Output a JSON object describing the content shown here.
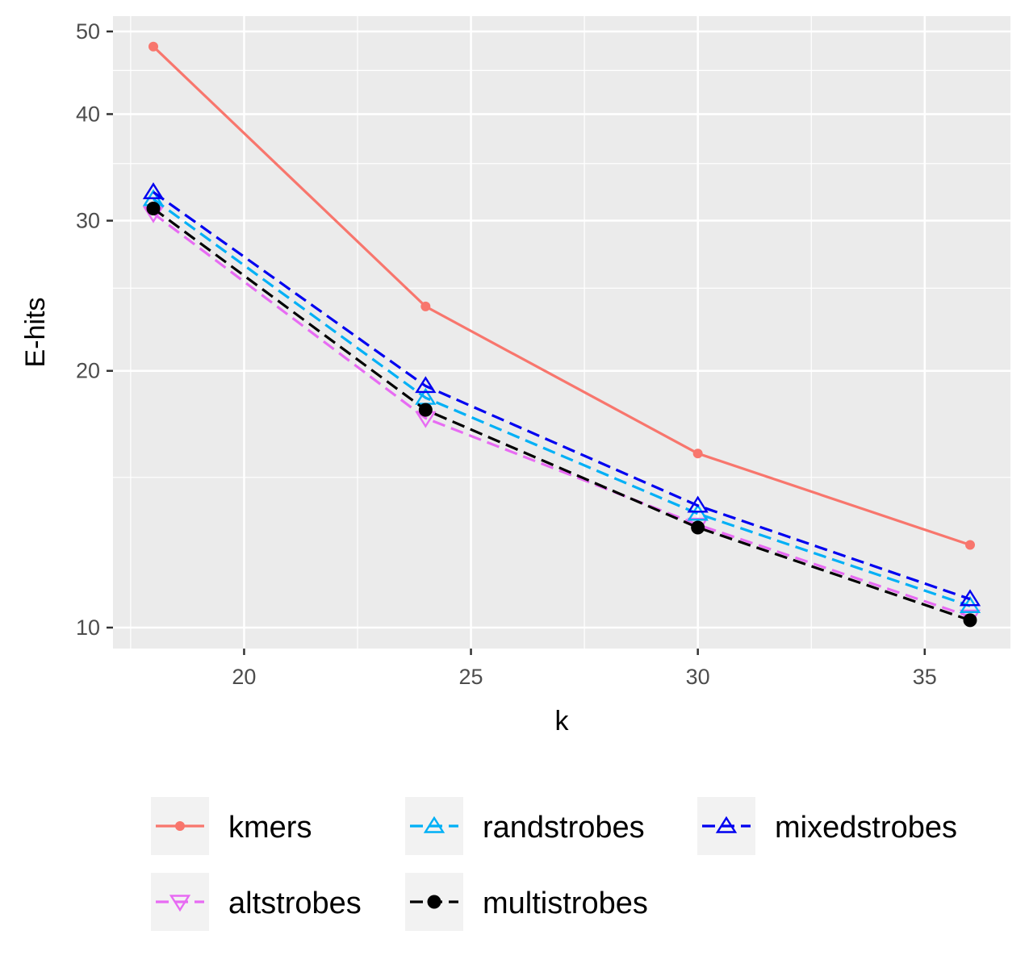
{
  "chart_data": {
    "type": "line",
    "title": "",
    "xlabel": "k",
    "ylabel": "E-hits",
    "x": [
      18,
      24,
      30,
      36
    ],
    "xlim": [
      17,
      37
    ],
    "ylim": [
      9.5,
      51
    ],
    "y_scale": "log",
    "x_ticks": [
      20,
      25,
      30,
      35
    ],
    "x_tick_labels": [
      "20",
      "25",
      "30",
      "35"
    ],
    "y_ticks": [
      10,
      20,
      30,
      40,
      50
    ],
    "y_tick_labels": [
      "10",
      "20",
      "30",
      "40",
      "50"
    ],
    "grid": true,
    "legend_position": "bottom",
    "series": [
      {
        "name": "kmers",
        "values": [
          48.0,
          23.8,
          16.0,
          12.5
        ],
        "color": "#F8766D",
        "line": "solid",
        "marker": "filled-circle-small"
      },
      {
        "name": "altstrobes",
        "values": [
          30.6,
          17.6,
          13.2,
          10.3
        ],
        "color": "#E76BF3",
        "line": "dashed",
        "marker": "triangle-down-open"
      },
      {
        "name": "randstrobes",
        "values": [
          31.8,
          18.6,
          13.6,
          10.6
        ],
        "color": "#00B0F6",
        "line": "dashed",
        "marker": "triangle-up-open"
      },
      {
        "name": "mixedstrobes",
        "values": [
          32.4,
          19.2,
          13.9,
          10.8
        ],
        "color": "#0000F0",
        "line": "dashed",
        "marker": "triangle-up-open"
      },
      {
        "name": "multistrobes",
        "values": [
          31.0,
          18.0,
          13.1,
          10.2
        ],
        "color": "#000000",
        "line": "dashed",
        "marker": "filled-circle"
      }
    ],
    "legend_order": [
      "kmers",
      "randstrobes",
      "mixedstrobes",
      "altstrobes",
      "multistrobes"
    ]
  }
}
